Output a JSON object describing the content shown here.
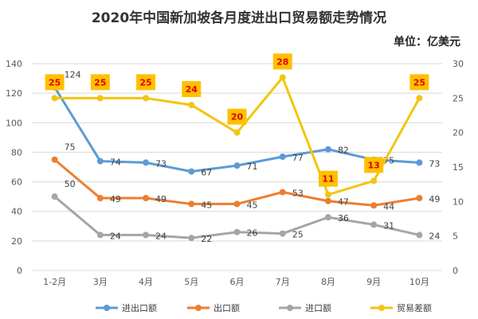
{
  "chart_data": {
    "type": "line",
    "title": "2020年中国新加坡各月度进出口贸易额走势情况",
    "unit": "单位：亿美元",
    "categories": [
      "1-2月",
      "3月",
      "4月",
      "5月",
      "6月",
      "7月",
      "8月",
      "9月",
      "10月"
    ],
    "y_left": {
      "ylim": [
        0,
        140
      ],
      "ticks": [
        0,
        20,
        40,
        60,
        80,
        100,
        120,
        140
      ]
    },
    "y_right": {
      "ylim": [
        0,
        30
      ],
      "ticks": [
        0,
        5,
        10,
        15,
        20,
        25,
        30
      ]
    },
    "grid": true,
    "legend": "bottom",
    "series": [
      {
        "name": "进出口额",
        "axis": "left",
        "color": "#5B9BD5",
        "values": [
          124,
          74,
          73,
          67,
          71,
          77,
          82,
          75,
          73
        ]
      },
      {
        "name": "出口额",
        "axis": "left",
        "color": "#ED7D31",
        "values": [
          75,
          49,
          49,
          45,
          45,
          53,
          47,
          44,
          49
        ]
      },
      {
        "name": "进口额",
        "axis": "left",
        "color": "#A5A5A5",
        "values": [
          50,
          24,
          24,
          22,
          26,
          25,
          36,
          31,
          24
        ]
      },
      {
        "name": "贸易差额",
        "axis": "right",
        "color": "#F2C511",
        "values": [
          25,
          25,
          25,
          24,
          20,
          28,
          11,
          13,
          25
        ]
      }
    ]
  }
}
